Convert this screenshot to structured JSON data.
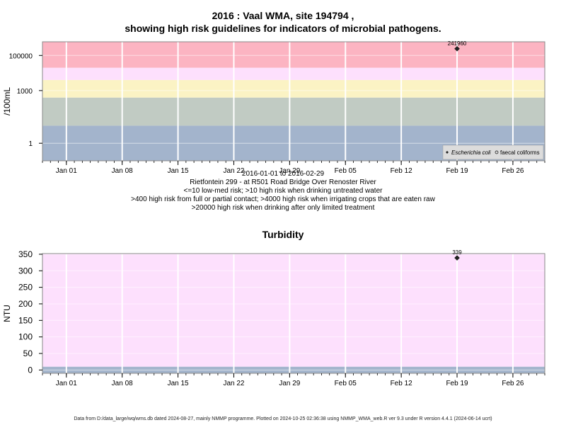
{
  "titles": {
    "main_line1": "2016 : Vaal WMA, site 194794 ,",
    "main_line2": "showing high risk guidelines for indicators of microbial pathogens.",
    "date_range": "2016-01-01 to 2016-02-29",
    "site_name": "Rietfontein 299 - at R501 Road Bridge Over Renoster River",
    "risk_line1": "<=10 low-med risk; >10 high risk when drinking untreated water",
    "risk_line2": ">400 high risk from full or partial contact; >4000 high risk when irrigating crops that are eaten raw",
    "risk_line3": ">20000 high risk when drinking after only limited treatment",
    "turbidity_title": "Turbidity",
    "footer": "Data from D:/data_large/wq/wms.db dated 2024-08-27, mainly NMMP programme. Plotted on 2024-10-25 02:36:38 using NMMP_WMA_web.R ver 9.3 under R version 4.4.1 (2024-06-14 ucrt)"
  },
  "chart_data": [
    {
      "type": "scatter",
      "ylabel": "/100mL",
      "y_scale": "log10",
      "y_ticks": [
        1,
        1000,
        100000
      ],
      "y_tick_labels": [
        "1",
        "1000",
        "100000"
      ],
      "ylim": [
        0.1,
        600000
      ],
      "xlim": [
        "2015-12-29",
        "2016-03-01"
      ],
      "x_ticks": [
        "2016-01-01",
        "2016-01-08",
        "2016-01-15",
        "2016-01-22",
        "2016-01-29",
        "2016-02-05",
        "2016-02-12",
        "2016-02-19",
        "2016-02-26"
      ],
      "x_tick_labels": [
        "Jan 01",
        "Jan 08",
        "Jan 15",
        "Jan 22",
        "Jan 29",
        "Feb 05",
        "Feb 12",
        "Feb 19",
        "Feb 26"
      ],
      "risk_bands": [
        {
          "from": 0.1,
          "to": 10,
          "color": "#a3b4cc"
        },
        {
          "from": 10,
          "to": 400,
          "color": "#c1cbc3"
        },
        {
          "from": 400,
          "to": 4000,
          "color": "#fbf3c4"
        },
        {
          "from": 4000,
          "to": 20000,
          "color": "#fde0fd"
        },
        {
          "from": 20000,
          "to": 600000,
          "color": "#fcb4c2"
        }
      ],
      "series": [
        {
          "name": "Escherichia coli",
          "marker": "filled-diamond",
          "x": [
            "2016-02-19"
          ],
          "values": [
            241960
          ],
          "labels": [
            "241960"
          ]
        },
        {
          "name": "faecal coliforms",
          "marker": "open-circle",
          "x": [],
          "values": [],
          "labels": []
        }
      ],
      "legend_position": "bottom-right",
      "grid": true
    },
    {
      "type": "scatter",
      "title": "Turbidity",
      "ylabel": "NTU",
      "ylim": [
        -10,
        352
      ],
      "y_ticks": [
        0,
        50,
        100,
        150,
        200,
        250,
        300,
        350
      ],
      "y_tick_labels": [
        "0",
        "50",
        "100",
        "150",
        "200",
        "250",
        "300",
        "350"
      ],
      "xlim": [
        "2015-12-29",
        "2016-03-01"
      ],
      "x_ticks": [
        "2016-01-01",
        "2016-01-08",
        "2016-01-15",
        "2016-01-22",
        "2016-01-29",
        "2016-02-05",
        "2016-02-12",
        "2016-02-19",
        "2016-02-26"
      ],
      "x_tick_labels": [
        "Jan 01",
        "Jan 08",
        "Jan 15",
        "Jan 22",
        "Jan 29",
        "Feb 05",
        "Feb 12",
        "Feb 19",
        "Feb 26"
      ],
      "risk_bands": [
        {
          "from": -10,
          "to": 10,
          "color": "#a3b4cc"
        },
        {
          "from": 10,
          "to": 352,
          "color": "#fde0fd"
        }
      ],
      "series": [
        {
          "marker": "filled-diamond",
          "x": [
            "2016-02-19"
          ],
          "values": [
            339
          ],
          "labels": [
            "339"
          ]
        }
      ],
      "grid": true
    }
  ]
}
